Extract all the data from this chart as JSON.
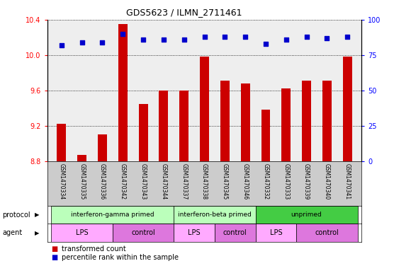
{
  "title": "GDS5623 / ILMN_2711461",
  "samples": [
    "GSM1470334",
    "GSM1470335",
    "GSM1470336",
    "GSM1470342",
    "GSM1470343",
    "GSM1470344",
    "GSM1470337",
    "GSM1470338",
    "GSM1470345",
    "GSM1470346",
    "GSM1470332",
    "GSM1470333",
    "GSM1470339",
    "GSM1470340",
    "GSM1470341"
  ],
  "transformed_count": [
    9.22,
    8.87,
    9.1,
    10.35,
    9.45,
    9.6,
    9.6,
    9.98,
    9.71,
    9.68,
    9.38,
    9.62,
    9.71,
    9.71,
    9.98
  ],
  "percentile_rank": [
    82,
    84,
    84,
    90,
    86,
    86,
    86,
    88,
    88,
    88,
    83,
    86,
    88,
    87,
    88
  ],
  "ylim_left": [
    8.8,
    10.4
  ],
  "ylim_right": [
    0,
    100
  ],
  "yticks_left": [
    8.8,
    9.2,
    9.6,
    10.0,
    10.4
  ],
  "yticks_right": [
    0,
    25,
    50,
    75,
    100
  ],
  "bar_color": "#cc0000",
  "dot_color": "#0000cc",
  "protocol_groups": [
    {
      "label": "interferon-gamma primed",
      "start": 0,
      "end": 6,
      "color": "#bbffbb"
    },
    {
      "label": "interferon-beta primed",
      "start": 6,
      "end": 10,
      "color": "#bbffbb"
    },
    {
      "label": "unprimed",
      "start": 10,
      "end": 15,
      "color": "#44cc44"
    }
  ],
  "agent_groups": [
    {
      "label": "LPS",
      "start": 0,
      "end": 3,
      "color": "#ffaaff"
    },
    {
      "label": "control",
      "start": 3,
      "end": 6,
      "color": "#dd77dd"
    },
    {
      "label": "LPS",
      "start": 6,
      "end": 8,
      "color": "#ffaaff"
    },
    {
      "label": "control",
      "start": 8,
      "end": 10,
      "color": "#dd77dd"
    },
    {
      "label": "LPS",
      "start": 10,
      "end": 12,
      "color": "#ffaaff"
    },
    {
      "label": "control",
      "start": 12,
      "end": 15,
      "color": "#dd77dd"
    }
  ],
  "background_color": "#ffffff",
  "plot_bg_color": "#eeeeee",
  "sample_bg_color": "#cccccc",
  "legend_items": [
    {
      "label": "transformed count",
      "color": "#cc0000"
    },
    {
      "label": "percentile rank within the sample",
      "color": "#0000cc"
    }
  ]
}
